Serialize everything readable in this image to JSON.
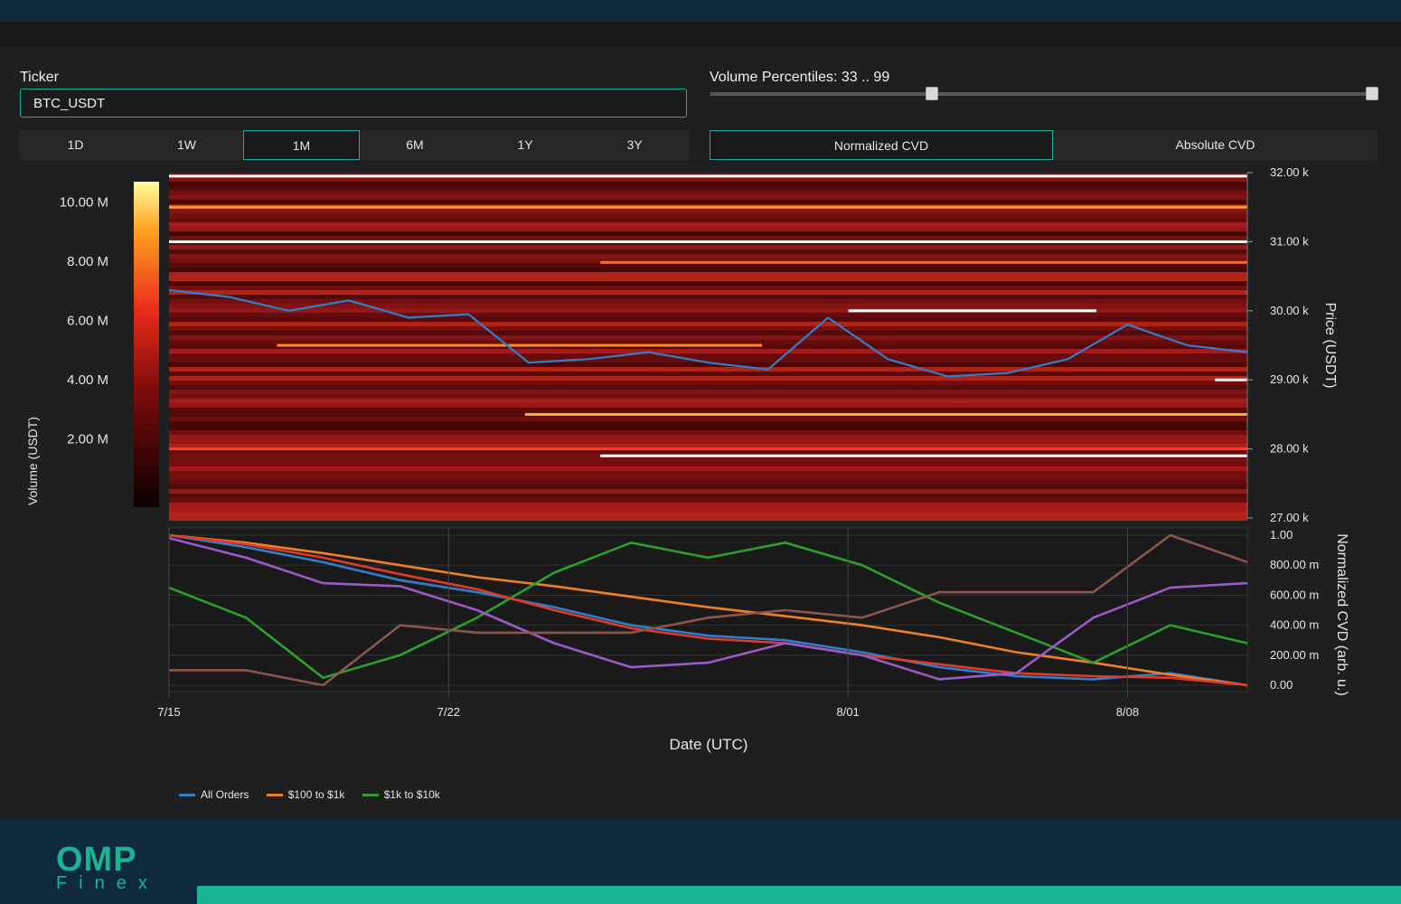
{
  "controls": {
    "ticker_label": "Ticker",
    "ticker_value": "BTC_USDT",
    "percentile_label": "Volume Percentiles: 33 .. 99",
    "percentile_low": 33,
    "percentile_high": 99,
    "ranges": [
      "1D",
      "1W",
      "1M",
      "6M",
      "1Y",
      "3Y"
    ],
    "active_range": "1M",
    "modes": [
      "Normalized CVD",
      "Absolute CVD"
    ],
    "active_mode": "Normalized CVD"
  },
  "colors": {
    "accent": "#1fae96",
    "brand": "#18b493",
    "price_line": "#2f7fcb",
    "all_orders": "#2f7fcb",
    "s100_1k": "#f07f2a",
    "s1k_10k": "#2ca02c",
    "red_series": "#e23a2a",
    "purple_series": "#9a5bc8",
    "brown_series": "#8c564b"
  },
  "chart_data": [
    {
      "type": "heatmap",
      "xlabel": "",
      "ylabel": "Price (USDT)",
      "colorbar_label": "Volume (USDT)",
      "colorbar_ticks": [
        "2.00 M",
        "4.00 M",
        "6.00 M",
        "8.00 M",
        "10.00 M"
      ],
      "y_ticks": [
        "27.00 k",
        "28.00 k",
        "29.00 k",
        "30.00 k",
        "31.00 k",
        "32.00 k"
      ],
      "ylim": [
        27000,
        32000
      ],
      "x_range": [
        "2023-07-15",
        "2023-08-11"
      ],
      "price_series": {
        "name": "Price",
        "x": [
          "7/15",
          "7/17",
          "7/19",
          "7/20",
          "7/21",
          "7/24",
          "7/25",
          "7/27",
          "7/29",
          "7/31",
          "8/01",
          "8/02",
          "8/03",
          "8/05",
          "8/07",
          "8/08",
          "8/09",
          "8/10",
          "8/11"
        ],
        "y": [
          30300,
          30200,
          30000,
          30150,
          29900,
          29950,
          29250,
          29300,
          29400,
          29250,
          29150,
          29900,
          29300,
          29050,
          29100,
          29300,
          29800,
          29500,
          29400
        ]
      }
    },
    {
      "type": "line",
      "xlabel": "Date (UTC)",
      "ylabel": "Normalized CVD (arb. u.)",
      "x_ticks": [
        "7/15",
        "7/22",
        "8/01",
        "8/08"
      ],
      "y_ticks": [
        "0.00",
        "200.00 m",
        "400.00 m",
        "600.00 m",
        "800.00 m",
        "1.00"
      ],
      "ylim": [
        0,
        1
      ],
      "x": [
        "7/15",
        "7/17",
        "7/19",
        "7/21",
        "7/23",
        "7/25",
        "7/27",
        "7/29",
        "7/31",
        "8/02",
        "8/04",
        "8/06",
        "8/08",
        "8/10",
        "8/11"
      ],
      "series": [
        {
          "name": "All Orders",
          "values": [
            1.0,
            0.92,
            0.82,
            0.7,
            0.62,
            0.52,
            0.4,
            0.33,
            0.3,
            0.22,
            0.12,
            0.06,
            0.04,
            0.08,
            0.0
          ]
        },
        {
          "name": "$100 to $1k",
          "values": [
            1.0,
            0.95,
            0.88,
            0.8,
            0.72,
            0.66,
            0.59,
            0.52,
            0.46,
            0.4,
            0.32,
            0.22,
            0.15,
            0.07,
            0.0
          ]
        },
        {
          "name": "$1k to $10k",
          "values": [
            0.65,
            0.45,
            0.05,
            0.2,
            0.45,
            0.75,
            0.95,
            0.85,
            0.95,
            0.8,
            0.55,
            0.35,
            0.15,
            0.4,
            0.28
          ]
        },
        {
          "values": [
            1.0,
            0.94,
            0.85,
            0.74,
            0.64,
            0.5,
            0.38,
            0.31,
            0.28,
            0.2,
            0.14,
            0.08,
            0.06,
            0.05,
            0.0
          ]
        },
        {
          "values": [
            0.98,
            0.85,
            0.68,
            0.66,
            0.5,
            0.28,
            0.12,
            0.15,
            0.28,
            0.2,
            0.04,
            0.08,
            0.45,
            0.65,
            0.68
          ]
        },
        {
          "values": [
            0.1,
            0.1,
            0.0,
            0.4,
            0.35,
            0.35,
            0.35,
            0.45,
            0.5,
            0.45,
            0.62,
            0.62,
            0.62,
            1.0,
            0.82
          ]
        }
      ]
    }
  ],
  "legend": [
    "All Orders",
    "$100 to $1k",
    "$1k to $10k"
  ],
  "branding": {
    "logo_top": "OMP",
    "logo_bottom": "Finex"
  }
}
